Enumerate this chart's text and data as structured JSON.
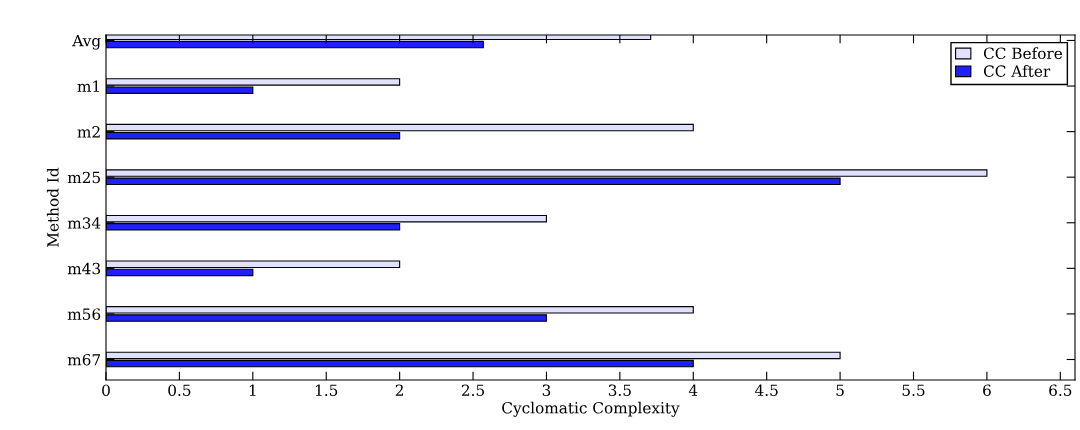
{
  "chart_data": {
    "type": "bar",
    "orientation": "horizontal",
    "xlabel": "Cyclomatic Complexity",
    "ylabel": "Method Id",
    "categories": [
      "Avg",
      "m1",
      "m2",
      "m25",
      "m34",
      "m43",
      "m56",
      "m67"
    ],
    "series": [
      {
        "name": "CC Before",
        "color": "#e0e0ff",
        "values": [
          3.71,
          2,
          4,
          6,
          3,
          2,
          4,
          5
        ]
      },
      {
        "name": "CC After",
        "color": "#2020ff",
        "values": [
          2.57,
          1,
          2,
          5,
          2,
          1,
          3,
          4
        ]
      }
    ],
    "xlim": [
      0,
      6.6
    ],
    "xticks": [
      0,
      0.5,
      1,
      1.5,
      2,
      2.5,
      3,
      3.5,
      4,
      4.5,
      5,
      5.5,
      6,
      6.5
    ],
    "grid": false,
    "legend": "top right"
  }
}
